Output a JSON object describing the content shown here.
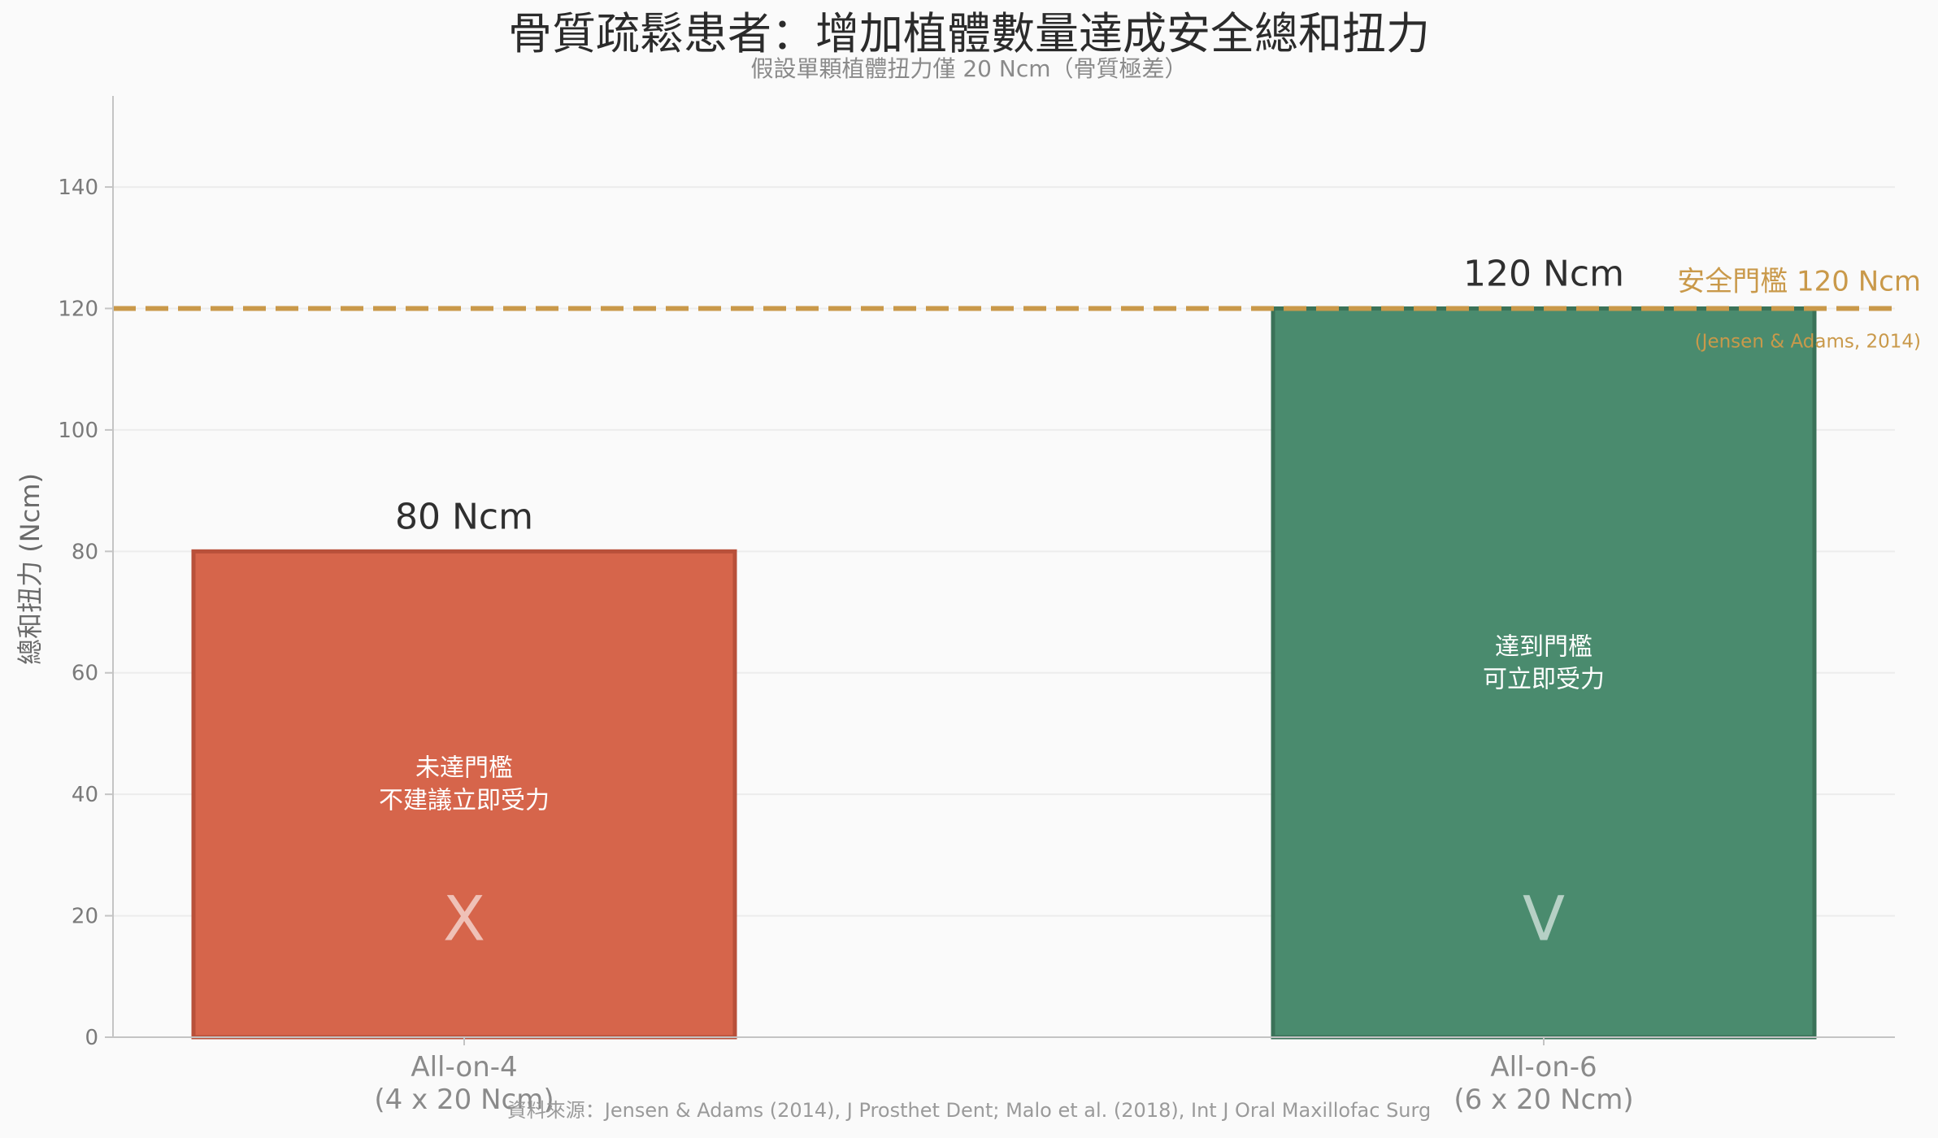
{
  "chart_data": {
    "type": "bar",
    "title": "骨質疏鬆患者：增加植體數量達成安全總和扭力",
    "subtitle": "假設單顆植體扭力僅 20 Ncm（骨質極差）",
    "ylabel": "總和扭力 (Ncm)",
    "ylim": [
      0,
      155
    ],
    "yticks": [
      0,
      20,
      40,
      60,
      80,
      100,
      120,
      140
    ],
    "grid": true,
    "categories": [
      {
        "line1": "All-on-4",
        "line2": "(4 x 20 Ncm)"
      },
      {
        "line1": "All-on-6",
        "line2": "(6 x 20 Ncm)"
      }
    ],
    "values": [
      80,
      120
    ],
    "value_labels": [
      "80 Ncm",
      "120 Ncm"
    ],
    "bar_notes": [
      {
        "line1": "未達門檻",
        "line2": "不建議立即受力",
        "mark": "X",
        "note_y": 43
      },
      {
        "line1": "達到門檻",
        "line2": "可立即受力",
        "mark": "V",
        "note_y": 63
      }
    ],
    "mark_y": 16,
    "colors": {
      "bars": [
        "#d6654b",
        "#4a8b6e"
      ],
      "bar_edges": [
        "#b8503a",
        "#3a7258"
      ],
      "threshold": "#c9994a",
      "axis": "#c4c4c4",
      "grid": "#ececec"
    },
    "threshold": {
      "value": 120,
      "label": "安全門檻 120 Ncm",
      "citation": "(Jensen & Adams, 2014)"
    },
    "source": "資料來源：Jensen & Adams (2014), J Prosthet Dent; Malo et al. (2018), Int J Oral Maxillofac Surg"
  }
}
